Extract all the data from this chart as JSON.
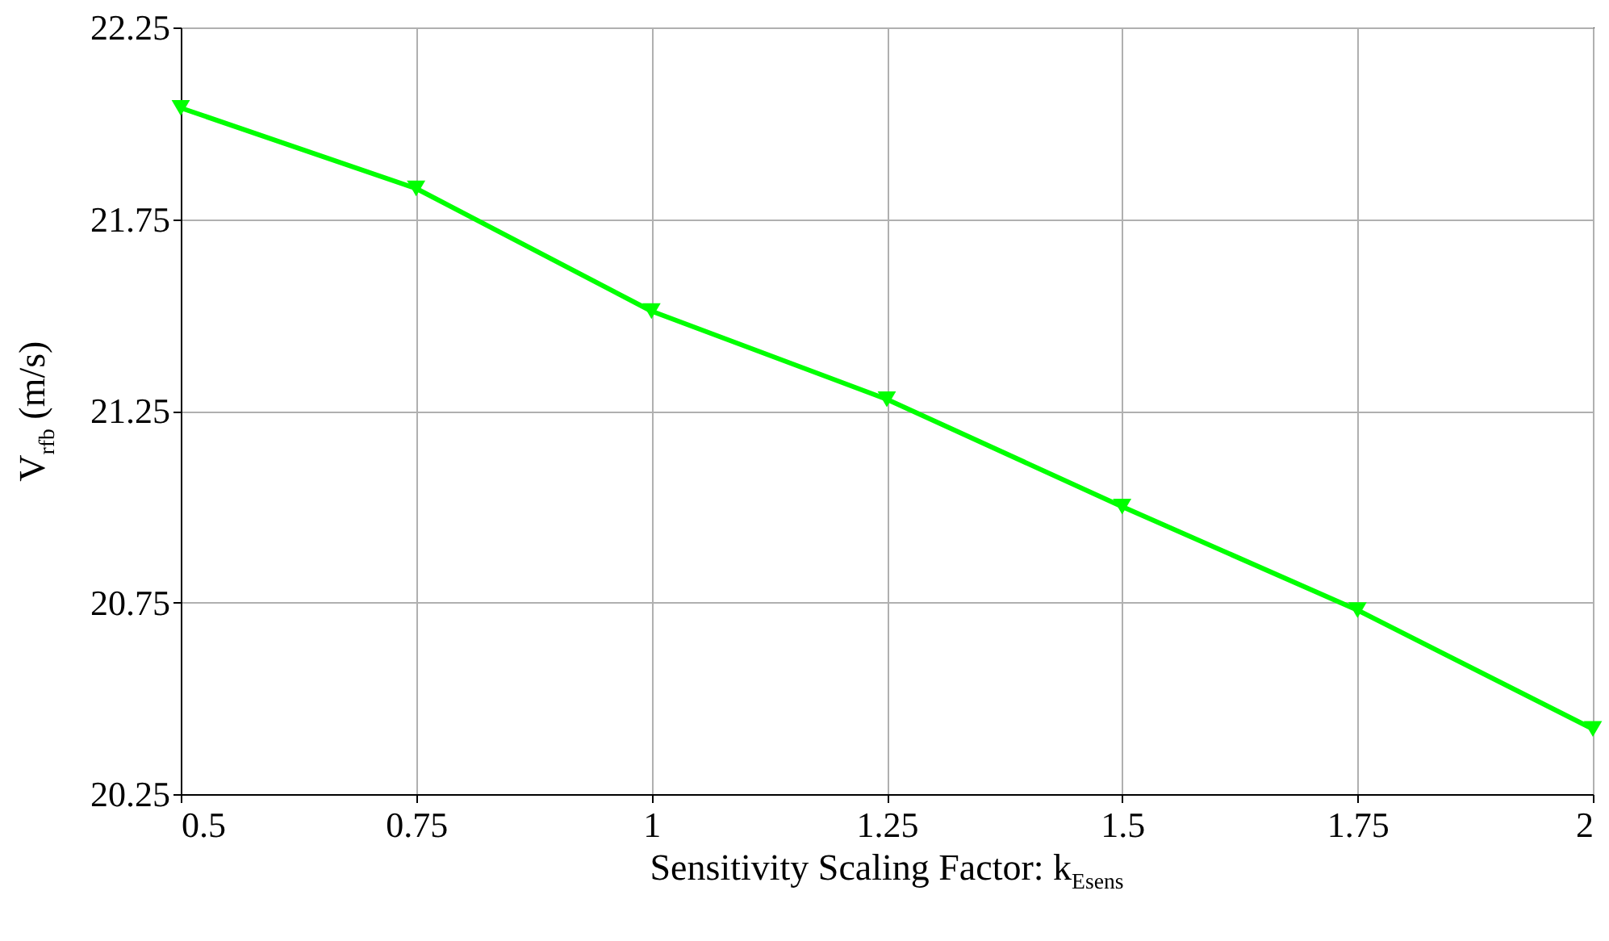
{
  "chart_data": {
    "type": "line",
    "xlabel": "Sensitivity Scaling Factor: k$_{Esens}$",
    "ylabel": "V$_{rfb}$ (m/s)",
    "x": [
      0.5,
      0.75,
      1,
      1.25,
      1.5,
      1.75,
      2
    ],
    "series": [
      {
        "color": "#00ff00",
        "values": [
          22.04,
          21.83,
          21.51,
          21.28,
          21.0,
          20.73,
          20.42
        ]
      }
    ],
    "xlim": [
      0.5,
      2
    ],
    "xticks": [
      0.5,
      0.75,
      1,
      1.25,
      1.5,
      1.75,
      2
    ],
    "ylim": [
      20.25,
      22.25
    ],
    "yticks": [
      20.25,
      20.75,
      21.25,
      21.75,
      22.25
    ],
    "grid": true,
    "marker": "triangle",
    "line_style": "solid"
  }
}
